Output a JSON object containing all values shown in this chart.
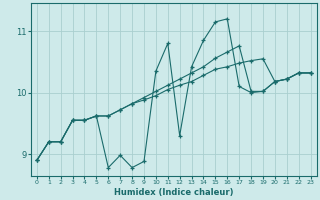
{
  "xlabel": "Humidex (Indice chaleur)",
  "bg_color": "#ceeaea",
  "grid_color": "#aacfcf",
  "line_color": "#1a6b6b",
  "xlim": [
    -0.5,
    23.5
  ],
  "ylim": [
    8.65,
    11.45
  ],
  "yticks": [
    9,
    10,
    11
  ],
  "xticks": [
    0,
    1,
    2,
    3,
    4,
    5,
    6,
    7,
    8,
    9,
    10,
    11,
    12,
    13,
    14,
    15,
    16,
    17,
    18,
    19,
    20,
    21,
    22,
    23
  ],
  "series": [
    [
      8.9,
      9.2,
      9.2,
      9.55,
      9.55,
      9.62,
      8.78,
      8.98,
      8.78,
      8.88,
      10.35,
      10.8,
      9.3,
      10.42,
      10.85,
      11.15,
      11.2,
      10.1,
      10.0,
      10.02,
      10.18,
      10.22,
      10.32,
      10.32
    ],
    [
      8.9,
      9.2,
      9.2,
      9.55,
      9.55,
      9.62,
      9.62,
      9.72,
      9.82,
      9.88,
      9.95,
      10.05,
      10.12,
      10.18,
      10.28,
      10.38,
      10.42,
      10.48,
      10.52,
      10.55,
      10.18,
      10.22,
      10.32,
      10.32
    ],
    [
      8.9,
      9.2,
      9.2,
      9.55,
      9.55,
      9.62,
      9.62,
      9.72,
      9.82,
      9.92,
      10.02,
      10.12,
      10.22,
      10.32,
      10.42,
      10.56,
      10.66,
      10.76,
      10.02,
      10.02,
      10.18,
      10.22,
      10.32,
      10.32
    ]
  ]
}
